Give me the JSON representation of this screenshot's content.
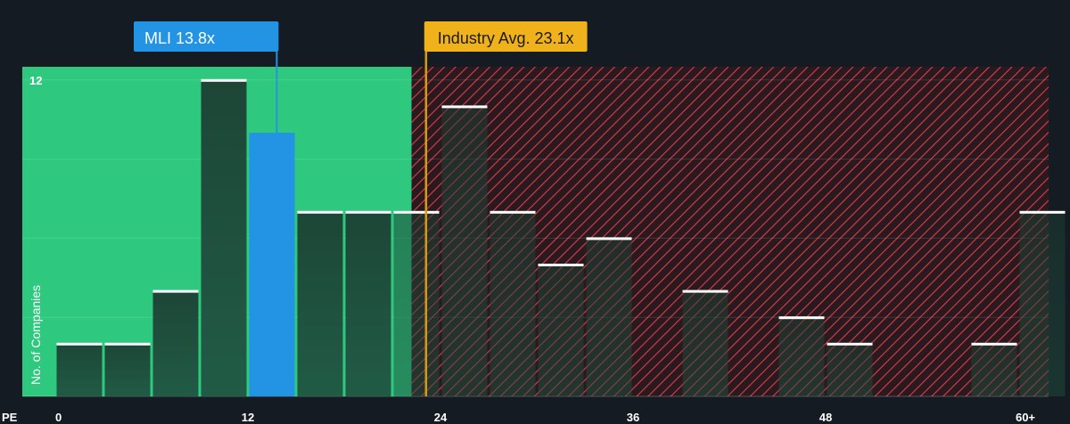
{
  "chart_data": {
    "type": "bar",
    "xlabel": "PE",
    "ylabel": "No. of Companies",
    "x_ticks": [
      "0",
      "12",
      "24",
      "36",
      "48",
      "60+"
    ],
    "y_ticks": [
      "12"
    ],
    "xlim": [
      0,
      61
    ],
    "ylim": [
      0,
      12.5
    ],
    "bin_width": 3,
    "bins": [
      {
        "x": 0,
        "value": 2
      },
      {
        "x": 3,
        "value": 2
      },
      {
        "x": 6,
        "value": 4
      },
      {
        "x": 9,
        "value": 12
      },
      {
        "x": 12,
        "value": 10,
        "highlight": true
      },
      {
        "x": 15,
        "value": 7
      },
      {
        "x": 18,
        "value": 7
      },
      {
        "x": 21,
        "value": 7
      },
      {
        "x": 24,
        "value": 11
      },
      {
        "x": 27,
        "value": 7
      },
      {
        "x": 30,
        "value": 5
      },
      {
        "x": 33,
        "value": 6
      },
      {
        "x": 39,
        "value": 4
      },
      {
        "x": 45,
        "value": 3
      },
      {
        "x": 48,
        "value": 2
      },
      {
        "x": 57,
        "value": 2
      },
      {
        "x": 60,
        "value": 7
      }
    ],
    "company": {
      "label": "MLI 13.8x",
      "value": 13.8
    },
    "industry": {
      "label": "Industry Avg. 23.1x",
      "value": 23.1
    },
    "fair_zone_max": 22.2,
    "grid": true,
    "colors": {
      "background": "#151b23",
      "fair_zone": "#2ec97e",
      "expensive_stripe": "#e0434a",
      "bar": "#1f4a3c",
      "bar_top": "#ffffff",
      "highlight_bar": "#2394e3",
      "company_callout": "#2394e3",
      "industry_callout": "#f0b21a",
      "industry_line": "#d89a12"
    }
  }
}
